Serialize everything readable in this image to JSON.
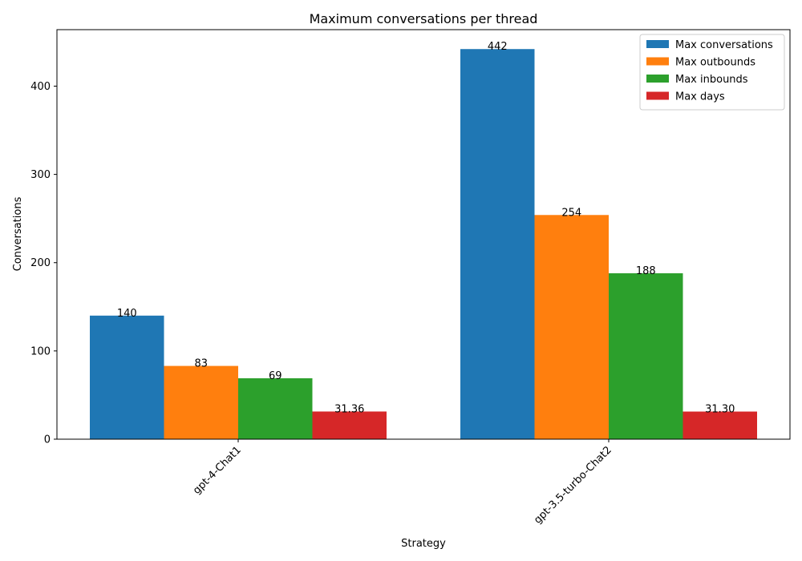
{
  "chart_data": {
    "type": "bar",
    "title": "Maximum conversations per thread",
    "xlabel": "Strategy",
    "ylabel": "Conversations",
    "categories": [
      "gpt-4-Chat1",
      "gpt-3.5-turbo-Chat2"
    ],
    "ylim": [
      0,
      464
    ],
    "yticks": [
      0,
      100,
      200,
      300,
      400
    ],
    "grid": false,
    "legend_position": "top-right",
    "series": [
      {
        "name": "Max conversations",
        "color": "#1f77b4",
        "values": [
          140,
          442
        ],
        "labels": [
          "140",
          "442"
        ]
      },
      {
        "name": "Max outbounds",
        "color": "#ff7f0e",
        "values": [
          83,
          254
        ],
        "labels": [
          "83",
          "254"
        ]
      },
      {
        "name": "Max inbounds",
        "color": "#2ca02c",
        "values": [
          69,
          188
        ],
        "labels": [
          "69",
          "188"
        ]
      },
      {
        "name": "Max days",
        "color": "#d62728",
        "values": [
          31.36,
          31.3
        ],
        "labels": [
          "31.36",
          "31.30"
        ]
      }
    ]
  }
}
